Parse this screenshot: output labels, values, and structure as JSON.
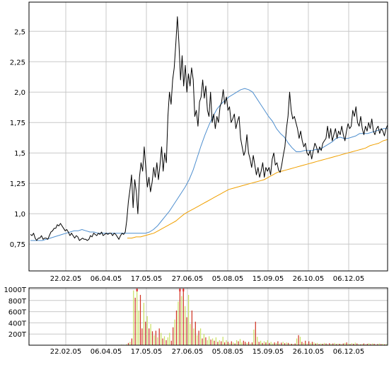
{
  "chart_data": [
    {
      "type": "line",
      "title": "",
      "xlabel": "",
      "ylabel": "",
      "x_tick_labels": [
        "22.02.05",
        "06.04.05",
        "17.05.05",
        "27.06.05",
        "05.08.05",
        "15.09.05",
        "26.10.05",
        "06.12.05"
      ],
      "y_tick_labels": [
        "0,75",
        "1,0",
        "1,25",
        "1,5",
        "1,75",
        "2,0",
        "2,25",
        "2,5"
      ],
      "y_ticks": [
        0.75,
        1.0,
        1.25,
        1.5,
        1.75,
        2.0,
        2.25,
        2.5
      ],
      "ylim": [
        0.53,
        2.74
      ],
      "grid": true,
      "colors": {
        "price": "#000000",
        "ma_short": "#4f8fcf",
        "ma_long": "#f0a000",
        "grid": "#c8c8c8"
      },
      "series": [
        {
          "key": "price",
          "values": [
            0.83,
            0.82,
            0.84,
            0.8,
            0.78,
            0.8,
            0.8,
            0.82,
            0.79,
            0.8,
            0.8,
            0.79,
            0.82,
            0.85,
            0.86,
            0.88,
            0.88,
            0.91,
            0.9,
            0.92,
            0.9,
            0.88,
            0.86,
            0.87,
            0.85,
            0.82,
            0.84,
            0.82,
            0.8,
            0.82,
            0.81,
            0.78,
            0.79,
            0.8,
            0.79,
            0.79,
            0.78,
            0.79,
            0.82,
            0.81,
            0.84,
            0.83,
            0.82,
            0.84,
            0.83,
            0.85,
            0.82,
            0.83,
            0.84,
            0.83,
            0.84,
            0.84,
            0.82,
            0.84,
            0.83,
            0.81,
            0.79,
            0.82,
            0.84,
            0.83,
            0.85,
            0.95,
            1.1,
            1.2,
            1.32,
            1.05,
            1.28,
            1.18,
            1.0,
            1.3,
            1.42,
            1.35,
            1.55,
            1.38,
            1.22,
            1.3,
            1.18,
            1.26,
            1.38,
            1.3,
            1.42,
            1.28,
            1.4,
            1.55,
            1.35,
            1.5,
            1.42,
            1.8,
            2.0,
            1.9,
            2.1,
            2.2,
            2.4,
            2.62,
            2.4,
            2.1,
            2.3,
            2.05,
            2.22,
            2.0,
            2.15,
            2.05,
            2.2,
            2.1,
            1.8,
            1.85,
            1.72,
            1.92,
            1.96,
            2.1,
            1.95,
            2.05,
            1.85,
            1.8,
            2.0,
            1.75,
            1.82,
            1.7,
            1.8,
            1.75,
            1.88,
            1.92,
            2.02,
            1.9,
            1.96,
            1.85,
            1.88,
            1.75,
            1.78,
            1.82,
            1.7,
            1.76,
            1.8,
            1.62,
            1.55,
            1.48,
            1.52,
            1.65,
            1.5,
            1.45,
            1.38,
            1.48,
            1.4,
            1.32,
            1.38,
            1.3,
            1.35,
            1.42,
            1.3,
            1.38,
            1.35,
            1.38,
            1.32,
            1.45,
            1.5,
            1.4,
            1.42,
            1.36,
            1.34,
            1.4,
            1.48,
            1.55,
            1.7,
            1.8,
            2.0,
            1.85,
            1.78,
            1.8,
            1.75,
            1.7,
            1.62,
            1.68,
            1.6,
            1.55,
            1.58,
            1.5,
            1.48,
            1.52,
            1.45,
            1.52,
            1.58,
            1.55,
            1.5,
            1.55,
            1.52,
            1.58,
            1.6,
            1.62,
            1.72,
            1.62,
            1.7,
            1.6,
            1.65,
            1.7,
            1.62,
            1.68,
            1.65,
            1.72,
            1.65,
            1.6,
            1.68,
            1.74,
            1.7,
            1.72,
            1.85,
            1.8,
            1.88,
            1.75,
            1.72,
            1.8,
            1.7,
            1.65,
            1.72,
            1.68,
            1.75,
            1.7,
            1.78,
            1.68,
            1.65,
            1.7,
            1.72,
            1.66,
            1.7,
            1.68,
            1.64,
            1.7,
            1.73
          ]
        },
        {
          "key": "ma_short",
          "values": [
            0.78,
            0.78,
            0.78,
            0.78,
            0.79,
            0.8,
            0.81,
            0.82,
            0.83,
            0.84,
            0.85,
            0.86,
            0.86,
            0.87,
            0.86,
            0.85,
            0.85,
            0.84,
            0.84,
            0.84,
            0.84,
            0.84,
            0.84,
            0.84,
            0.84,
            0.84,
            0.84,
            0.84,
            0.84,
            0.84,
            0.85,
            0.87,
            0.9,
            0.94,
            0.98,
            1.02,
            1.07,
            1.12,
            1.17,
            1.22,
            1.28,
            1.36,
            1.46,
            1.56,
            1.65,
            1.73,
            1.8,
            1.86,
            1.9,
            1.93,
            1.96,
            1.98,
            2.0,
            2.02,
            2.03,
            2.02,
            2.0,
            1.95,
            1.9,
            1.85,
            1.8,
            1.76,
            1.7,
            1.66,
            1.63,
            1.58,
            1.54,
            1.51,
            1.51,
            1.52,
            1.52,
            1.52,
            1.53,
            1.53,
            1.55,
            1.57,
            1.59,
            1.62,
            1.63,
            1.62,
            1.62,
            1.63,
            1.64,
            1.66,
            1.66,
            1.66,
            1.67,
            1.68,
            1.69,
            1.7,
            1.7
          ]
        },
        {
          "key": "ma_long",
          "values": [
            0.8,
            0.8,
            0.81,
            0.81,
            0.82,
            0.83,
            0.84,
            0.86,
            0.88,
            0.9,
            0.92,
            0.94,
            0.97,
            1.0,
            1.02,
            1.04,
            1.06,
            1.08,
            1.1,
            1.12,
            1.14,
            1.16,
            1.18,
            1.2,
            1.21,
            1.22,
            1.23,
            1.24,
            1.25,
            1.26,
            1.27,
            1.28,
            1.3,
            1.32,
            1.34,
            1.35,
            1.36,
            1.37,
            1.38,
            1.39,
            1.4,
            1.41,
            1.42,
            1.43,
            1.44,
            1.45,
            1.46,
            1.47,
            1.48,
            1.49,
            1.5,
            1.51,
            1.52,
            1.53,
            1.54,
            1.56,
            1.57,
            1.58,
            1.6,
            1.61
          ]
        }
      ]
    },
    {
      "type": "bar",
      "title": "",
      "xlabel": "",
      "ylabel": "",
      "x_tick_labels": [
        "22.02.05",
        "06.04.05",
        "17.05.05",
        "27.06.05",
        "05.08.05",
        "15.09.05",
        "26.10.05",
        "06.12.05"
      ],
      "y_tick_labels": [
        "200T",
        "400T",
        "600T",
        "800T",
        "1000T"
      ],
      "y_ticks": [
        200,
        400,
        600,
        800,
        1000
      ],
      "ylim": [
        0,
        1000
      ],
      "grid": true,
      "colors": {
        "up": "#c8e060",
        "down": "#d03020",
        "spike": "#e02020"
      },
      "series": [
        {
          "key": "volume",
          "values": [
            3,
            2,
            4,
            5,
            3,
            2,
            6,
            4,
            3,
            2,
            5,
            3,
            4,
            8,
            6,
            3,
            2,
            5,
            4,
            3,
            2,
            3,
            4,
            2,
            6,
            3,
            2,
            4,
            3,
            5,
            2,
            3,
            2,
            4,
            3,
            2,
            3,
            2,
            4,
            3,
            5,
            2,
            3,
            4,
            2,
            3,
            2,
            4,
            3,
            2,
            5,
            3,
            2,
            12,
            8,
            5,
            20,
            40,
            60,
            120,
            980,
            850,
            1000,
            620,
            900,
            300,
            760,
            420,
            520,
            300,
            380,
            250,
            180,
            260,
            140,
            300,
            220,
            120,
            160,
            90,
            140,
            220,
            80,
            320,
            460,
            620,
            780,
            1000,
            880,
            1000,
            700,
            500,
            900,
            380,
            620,
            300,
            420,
            180,
            260,
            300,
            120,
            200,
            140,
            90,
            160,
            100,
            120,
            80,
            140,
            60,
            90,
            70,
            150,
            50,
            90,
            60,
            40,
            70,
            50,
            30,
            90,
            70,
            110,
            50,
            80,
            60,
            40,
            60,
            30,
            50,
            280,
            420,
            150,
            60,
            80,
            40,
            70,
            50,
            90,
            40,
            60,
            30,
            50,
            40,
            70,
            30,
            45,
            60,
            35,
            50,
            40,
            30,
            25,
            20,
            30,
            120,
            180,
            150,
            60,
            40,
            80,
            30,
            70,
            40,
            60,
            50,
            30,
            40,
            20,
            30,
            25,
            40,
            30,
            20,
            35,
            25,
            30,
            40,
            20,
            30,
            25,
            20,
            30,
            40,
            50,
            30,
            20,
            35,
            25,
            45,
            30,
            20,
            15,
            25,
            30,
            20,
            25,
            35,
            20,
            30,
            25,
            15,
            20,
            30,
            20,
            25,
            15,
            20
          ]
        },
        {
          "key": "direction",
          "values": [
            0,
            1,
            0,
            1,
            1,
            0,
            1,
            0,
            1,
            1,
            0,
            1,
            0,
            1,
            0,
            1,
            1,
            0,
            1,
            0,
            1,
            0,
            1,
            0,
            1,
            0,
            1,
            0,
            1,
            0,
            1,
            0,
            1,
            0,
            1,
            1,
            0,
            1,
            0,
            1,
            0,
            1,
            1,
            0,
            1,
            0,
            1,
            0,
            1,
            1,
            0,
            1,
            0,
            1,
            0,
            1,
            1,
            0,
            1,
            0,
            1,
            0,
            1,
            1,
            0,
            0,
            1,
            0,
            1,
            0,
            1,
            0,
            1,
            0,
            1,
            0,
            1,
            0,
            1,
            0,
            1,
            1,
            0,
            0,
            1,
            0,
            1,
            0,
            1,
            0,
            1,
            0,
            1,
            1,
            0,
            1,
            0,
            1,
            0,
            1,
            0,
            1,
            0,
            1,
            1,
            0,
            1,
            0,
            1,
            0,
            1,
            0,
            1,
            0,
            1,
            0,
            1,
            0,
            1,
            0,
            1,
            0,
            1,
            1,
            0,
            0,
            1,
            0,
            1,
            0,
            1,
            0,
            1,
            0,
            1,
            0,
            1,
            0,
            1,
            0,
            1,
            1,
            0,
            1,
            0,
            1,
            0,
            1,
            0,
            1,
            0,
            1,
            0,
            1,
            0,
            1,
            0,
            1,
            0,
            1,
            0,
            1,
            0,
            1,
            0,
            1,
            0,
            1,
            0,
            1,
            0,
            1,
            0,
            1,
            0,
            1,
            0,
            1,
            0,
            1,
            0,
            1,
            0,
            1,
            0,
            1,
            0,
            1,
            0,
            1,
            0,
            1,
            0,
            1,
            0,
            1,
            0,
            1,
            0,
            1,
            0,
            1,
            0,
            1,
            0,
            1,
            0,
            1,
            0,
            1,
            0,
            1,
            0,
            1,
            0,
            1,
            0,
            1,
            0,
            1
          ]
        }
      ]
    }
  ]
}
